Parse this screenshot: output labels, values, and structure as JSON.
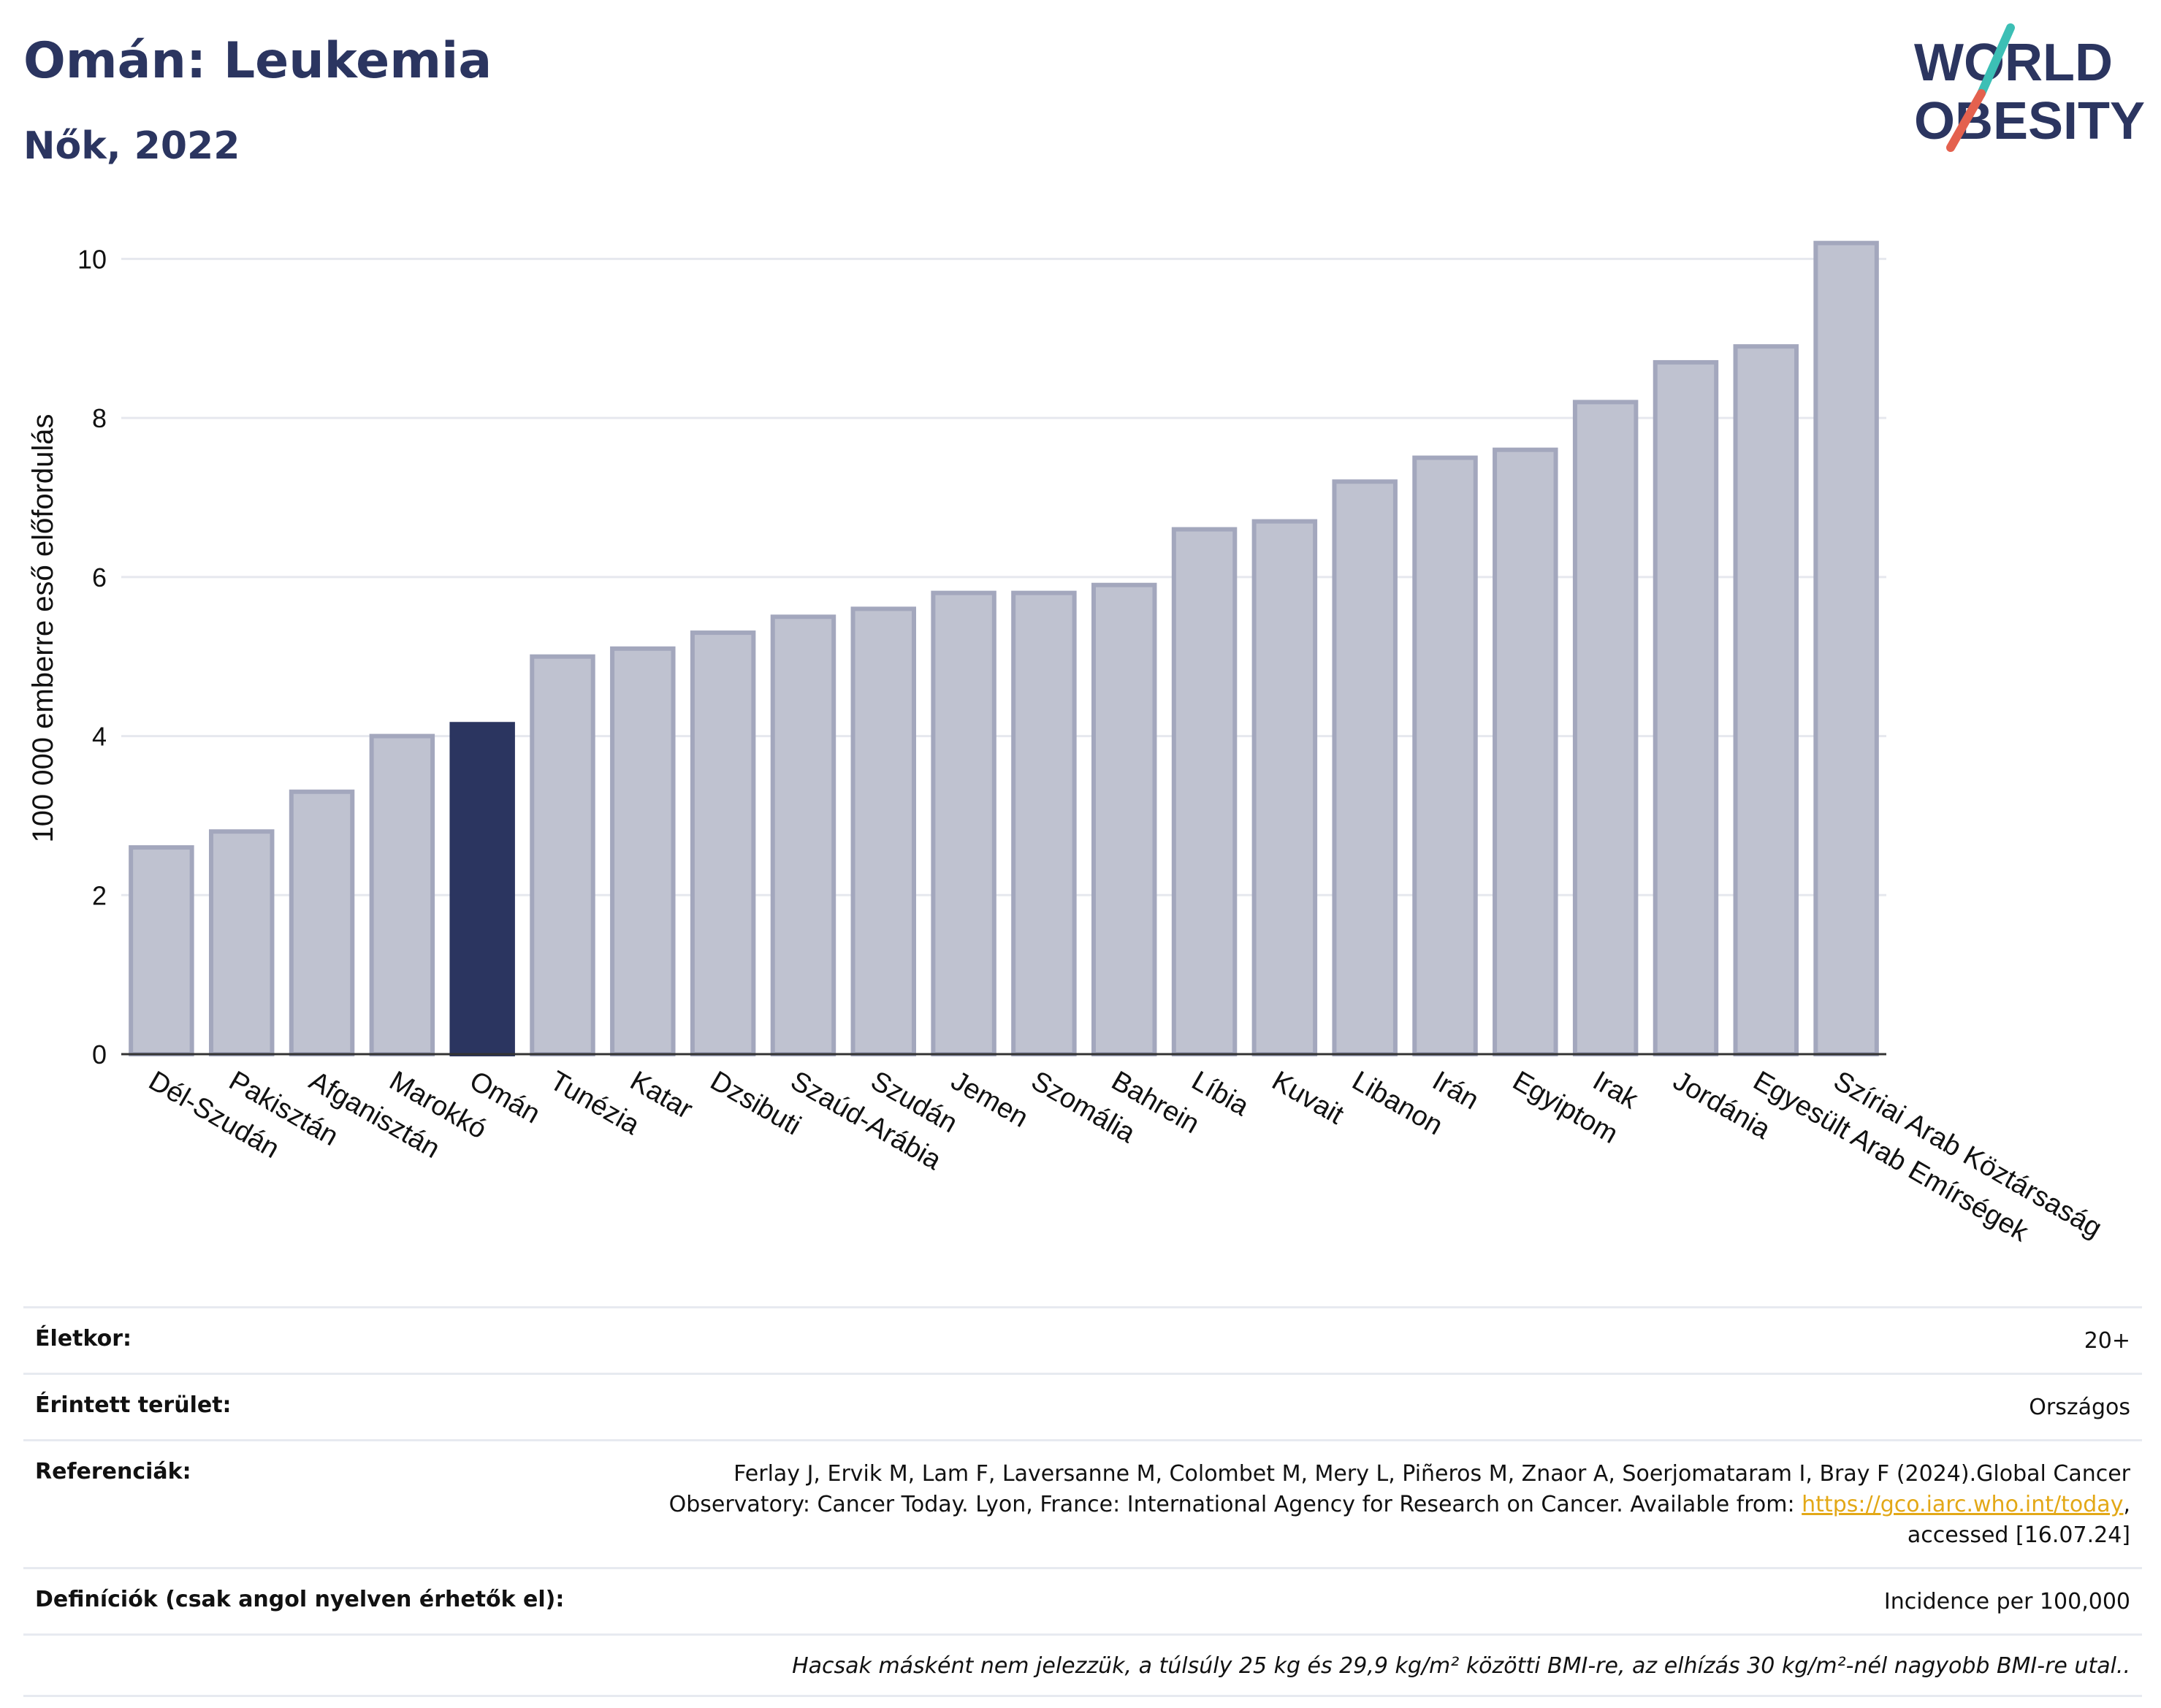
{
  "header": {
    "title": "Omán: Leukemia",
    "subtitle": "Nők, 2022"
  },
  "logo": {
    "line1": "WORLD",
    "line2": "OBESITY",
    "text_color": "#2b3560",
    "slash_color_top": "#3cbfb5",
    "slash_color_bottom": "#e4614e"
  },
  "colors": {
    "bar_default": "#bfc2d0",
    "bar_default_stroke": "#a3a7bd",
    "bar_highlight": "#2b3560",
    "grid": "#e6e8ee"
  },
  "chart_data": {
    "type": "bar",
    "ylabel": "100 000 emberre eső előfordulás",
    "ylim": [
      0,
      10.5
    ],
    "yticks": [
      0,
      2,
      4,
      6,
      8,
      10
    ],
    "grid": true,
    "highlight": "Omán",
    "categories": [
      "Dél-Szudán",
      "Pakisztán",
      "Afganisztán",
      "Marokkó",
      "Omán",
      "Tunézia",
      "Katar",
      "Dzsibuti",
      "Szaúd-Arábia",
      "Szudán",
      "Jemen",
      "Szomália",
      "Bahrein",
      "Líbia",
      "Kuvait",
      "Libanon",
      "Irán",
      "Egyiptom",
      "Irak",
      "Jordánia",
      "Egyesült Arab Emírségek",
      "Szíriai Arab Köztársaság"
    ],
    "values": [
      2.6,
      2.8,
      3.3,
      4.0,
      4.15,
      5.0,
      5.1,
      5.3,
      5.5,
      5.6,
      5.8,
      5.8,
      5.9,
      6.6,
      6.7,
      7.2,
      7.5,
      7.6,
      8.2,
      8.7,
      8.9,
      10.2
    ]
  },
  "meta": {
    "age_label": "Életkor:",
    "age_value": "20+",
    "area_label": "Érintett terület:",
    "area_value": "Országos",
    "ref_label": "Referenciák:",
    "ref_text_before": "Ferlay J, Ervik M, Lam F, Laversanne M, Colombet M, Mery L, Piñeros M, Znaor A, Soerjomataram I, Bray F (2024).Global Cancer Observatory: Cancer Today. Lyon, France: International Agency for Research on Cancer. Available from: ",
    "ref_link": "https://gco.iarc.who.int/today",
    "ref_text_after": ", accessed [16.07.24]",
    "def_label": "Definíciók (csak angol nyelven érhetők el):",
    "def_value": "Incidence per 100,000",
    "note": "Hacsak másként nem jelezzük, a túlsúly 25 kg és 29,9 kg/m² közötti BMI-re, az elhízás 30 kg/m²-nél nagyobb BMI-re utal.."
  }
}
